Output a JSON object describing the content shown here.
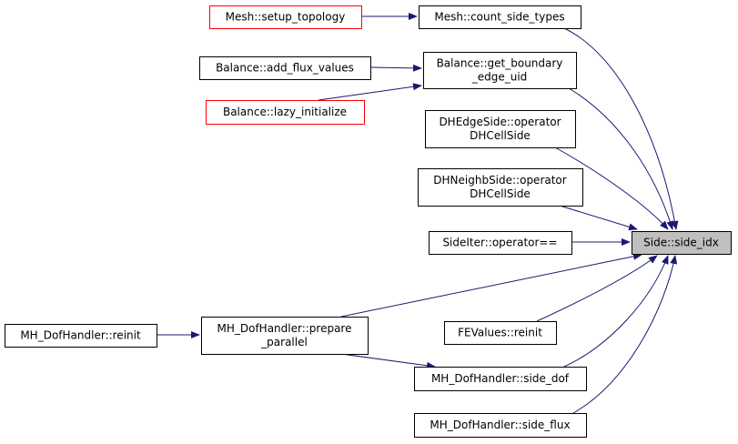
{
  "colors": {
    "edge": "#191970",
    "focus_fill": "#bfbfbf",
    "normal_border": "#000000",
    "truncated_border": "#ff0000"
  },
  "nodes": {
    "side_idx": {
      "lines": [
        "Side::side_idx"
      ]
    },
    "count_side_types": {
      "lines": [
        "Mesh::count_side_types"
      ]
    },
    "setup_topology": {
      "lines": [
        "Mesh::setup_topology"
      ]
    },
    "get_boundary_edge_uid": {
      "lines": [
        "Balance::get_boundary",
        "_edge_uid"
      ]
    },
    "add_flux_values": {
      "lines": [
        "Balance::add_flux_values"
      ]
    },
    "lazy_initialize": {
      "lines": [
        "Balance::lazy_initialize"
      ]
    },
    "dhedgeside_op": {
      "lines": [
        "DHEdgeSide::operator",
        "DHCellSide"
      ]
    },
    "dhneighbside_op": {
      "lines": [
        "DHNeighbSide::operator",
        "DHCellSide"
      ]
    },
    "sideiter_op": {
      "lines": [
        "SideIter::operator=="
      ]
    },
    "prepare_parallel": {
      "lines": [
        "MH_DofHandler::prepare",
        "_parallel"
      ]
    },
    "mh_reinit": {
      "lines": [
        "MH_DofHandler::reinit"
      ]
    },
    "fevalues_reinit": {
      "lines": [
        "FEValues::reinit"
      ]
    },
    "side_dof": {
      "lines": [
        "MH_DofHandler::side_dof"
      ]
    },
    "side_flux": {
      "lines": [
        "MH_DofHandler::side_flux"
      ]
    }
  },
  "edges": [
    [
      "count_side_types",
      "side_idx"
    ],
    [
      "setup_topology",
      "count_side_types"
    ],
    [
      "get_boundary_edge_uid",
      "side_idx"
    ],
    [
      "add_flux_values",
      "get_boundary_edge_uid"
    ],
    [
      "lazy_initialize",
      "get_boundary_edge_uid"
    ],
    [
      "dhedgeside_op",
      "side_idx"
    ],
    [
      "dhneighbside_op",
      "side_idx"
    ],
    [
      "sideiter_op",
      "side_idx"
    ],
    [
      "prepare_parallel",
      "side_idx"
    ],
    [
      "mh_reinit",
      "prepare_parallel"
    ],
    [
      "fevalues_reinit",
      "side_idx"
    ],
    [
      "side_dof",
      "side_idx"
    ],
    [
      "prepare_parallel",
      "side_dof"
    ],
    [
      "side_flux",
      "side_idx"
    ]
  ]
}
